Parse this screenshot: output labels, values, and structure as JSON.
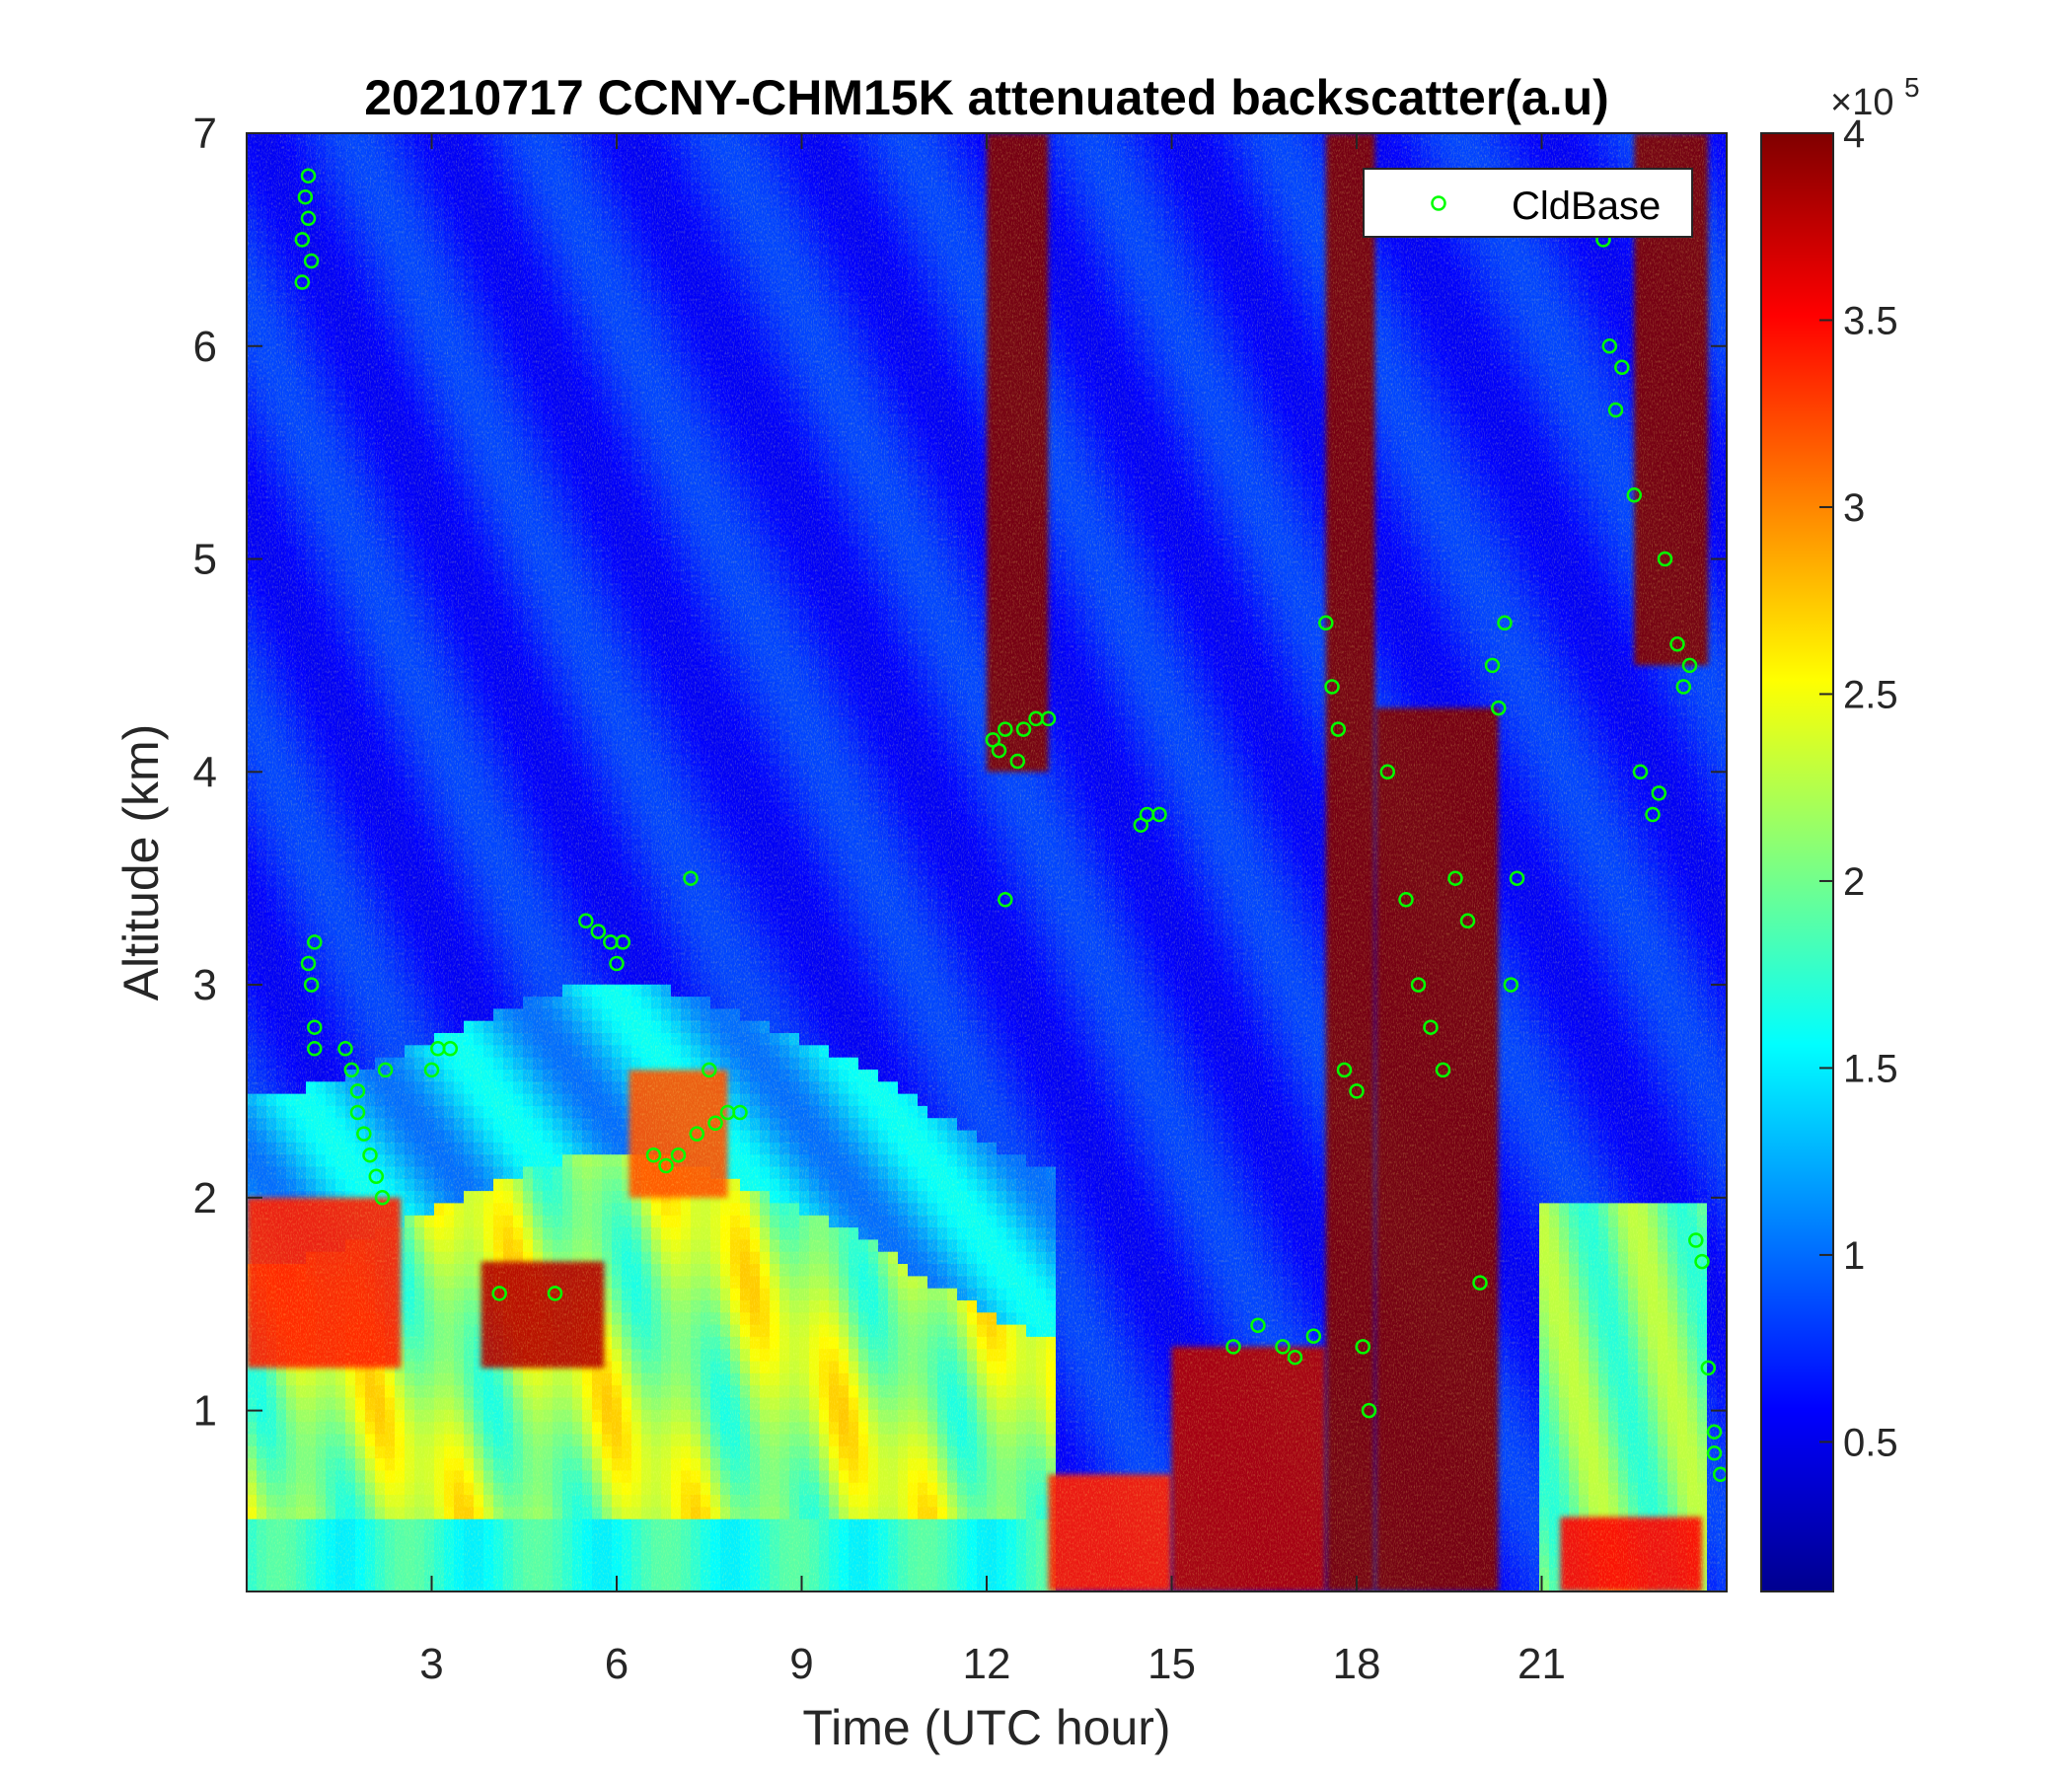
{
  "chart_data": {
    "type": "heatmap",
    "title": "20210717 CCNY-CHM15K attenuated backscatter(a.u)",
    "xlabel": "Time (UTC hour)",
    "ylabel": "Altitude (km)",
    "xlim": [
      0,
      24
    ],
    "ylim": [
      0.15,
      7
    ],
    "xticks": [
      3,
      6,
      9,
      12,
      15,
      18,
      21
    ],
    "yticks": [
      1,
      2,
      3,
      4,
      5,
      6,
      7
    ],
    "colormap": "jet",
    "colorbar": {
      "range": [
        0.1,
        4
      ],
      "ticks": [
        0.5,
        1,
        1.5,
        2,
        2.5,
        3,
        3.5,
        4
      ],
      "exponent_label": "×10",
      "exponent_power": "5"
    },
    "legend": {
      "position": "top-right",
      "entries": [
        "CldBase"
      ],
      "marker": "circle",
      "color": "#00ff00"
    },
    "backscatter_regions_description_units": "a.u. (x10^5)",
    "field_features": [
      {
        "t0": 0,
        "t1": 2.5,
        "z0": 1.2,
        "z1": 2.0,
        "v": 3.4
      },
      {
        "t0": 3.8,
        "t1": 5.8,
        "z0": 1.2,
        "z1": 1.7,
        "v": 3.8
      },
      {
        "t0": 6.2,
        "t1": 7.8,
        "z0": 2.0,
        "z1": 2.6,
        "v": 3.2
      },
      {
        "t0": 12.0,
        "t1": 13.0,
        "z0": 4.0,
        "z1": 7.0,
        "v": 4.0
      },
      {
        "t0": 13.0,
        "t1": 15.0,
        "z0": 0.15,
        "z1": 0.7,
        "v": 3.4
      },
      {
        "t0": 15.0,
        "t1": 17.5,
        "z0": 0.15,
        "z1": 1.3,
        "v": 3.8
      },
      {
        "t0": 17.5,
        "t1": 18.3,
        "z0": 0.15,
        "z1": 7.0,
        "v": 4.0
      },
      {
        "t0": 18.3,
        "t1": 20.3,
        "z0": 0.15,
        "z1": 4.3,
        "v": 4.0
      },
      {
        "t0": 21.3,
        "t1": 23.6,
        "z0": 0.15,
        "z1": 0.5,
        "v": 3.5
      },
      {
        "t0": 22.5,
        "t1": 23.7,
        "z0": 4.5,
        "z1": 7.0,
        "v": 4.0
      }
    ],
    "series": [
      {
        "name": "CldBase",
        "x": [
          0.9,
          0.9,
          0.95,
          1.0,
          1.0,
          1.05,
          1.0,
          1.1,
          1.05,
          1.1,
          1.1,
          1.6,
          1.7,
          1.8,
          1.8,
          1.9,
          2.0,
          2.1,
          2.2,
          2.25,
          3.0,
          3.1,
          3.3,
          4.1,
          5.0,
          5.5,
          5.7,
          5.9,
          6.0,
          6.1,
          6.6,
          6.8,
          7.0,
          7.2,
          7.3,
          7.5,
          7.6,
          7.8,
          8.0,
          12.1,
          12.2,
          12.3,
          12.5,
          12.6,
          12.8,
          13.0,
          12.3,
          14.5,
          14.6,
          14.8,
          16.0,
          16.4,
          16.8,
          17.0,
          17.3,
          17.5,
          17.6,
          17.7,
          17.8,
          18.0,
          18.1,
          18.2,
          18.5,
          18.8,
          19.0,
          19.2,
          19.4,
          19.6,
          19.8,
          20.0,
          20.2,
          20.3,
          20.4,
          20.5,
          20.6,
          22.0,
          22.1,
          22.2,
          22.3,
          22.5,
          22.6,
          22.8,
          22.9,
          23.0,
          23.2,
          23.3,
          23.4,
          23.5,
          23.6,
          23.7,
          23.8,
          23.8,
          23.9
        ],
        "y": [
          6.3,
          6.5,
          6.7,
          6.6,
          6.8,
          6.4,
          3.1,
          3.2,
          3.0,
          2.8,
          2.7,
          2.7,
          2.6,
          2.5,
          2.4,
          2.3,
          2.2,
          2.1,
          2.0,
          2.6,
          2.6,
          2.7,
          2.7,
          1.55,
          1.55,
          3.3,
          3.25,
          3.2,
          3.1,
          3.2,
          2.2,
          2.15,
          2.2,
          3.5,
          2.3,
          2.6,
          2.35,
          2.4,
          2.4,
          4.15,
          4.1,
          4.2,
          4.05,
          4.2,
          4.25,
          4.25,
          3.4,
          3.75,
          3.8,
          3.8,
          1.3,
          1.4,
          1.3,
          1.25,
          1.35,
          4.7,
          4.4,
          4.2,
          2.6,
          2.5,
          1.3,
          1.0,
          4.0,
          3.4,
          3.0,
          2.8,
          2.6,
          3.5,
          3.3,
          1.6,
          4.5,
          4.3,
          4.7,
          3.0,
          3.5,
          6.5,
          6.0,
          5.7,
          5.9,
          5.3,
          4.0,
          3.8,
          3.9,
          5.0,
          4.6,
          4.4,
          4.5,
          1.8,
          1.7,
          1.2,
          0.9,
          0.8,
          0.7
        ]
      }
    ]
  }
}
